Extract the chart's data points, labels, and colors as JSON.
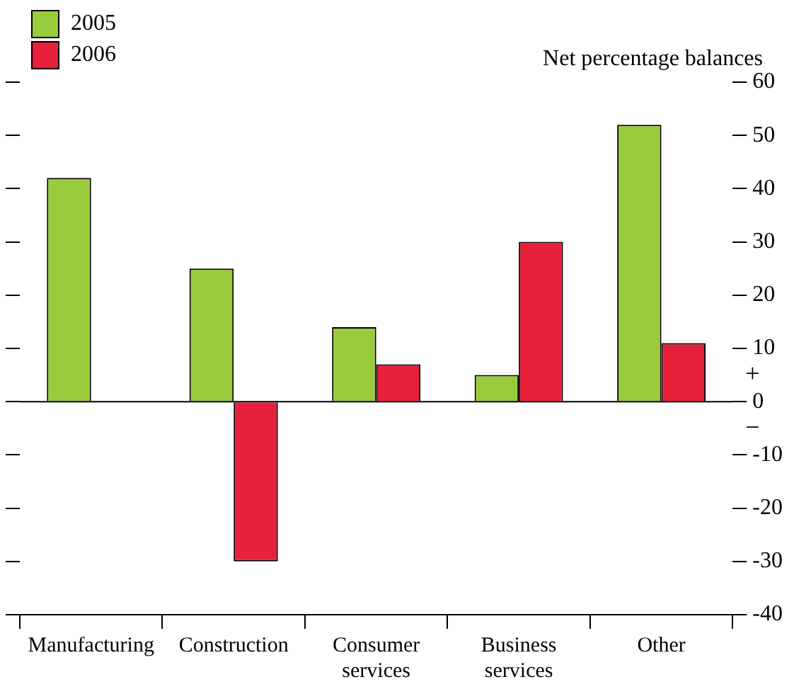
{
  "chart_data": {
    "type": "bar",
    "ylabel": "Net percentage balances",
    "categories": [
      "Manufacturing",
      "Construction",
      "Consumer services",
      "Business services",
      "Other"
    ],
    "series": [
      {
        "name": "2005",
        "color": "#9acb3c",
        "values": [
          42,
          25,
          14,
          5,
          52
        ]
      },
      {
        "name": "2006",
        "color": "#e8203a",
        "values": [
          null,
          -30,
          7,
          30,
          11
        ]
      }
    ],
    "ylim": [
      -40,
      60
    ],
    "yticks": [
      -40,
      -30,
      -20,
      -10,
      0,
      10,
      20,
      30,
      40,
      50,
      60
    ],
    "ref_lines": [
      {
        "axis": "y",
        "value": 0,
        "color": "#000000"
      }
    ],
    "annotations": [
      "+",
      "−"
    ],
    "legend": "top left",
    "grid": false
  }
}
